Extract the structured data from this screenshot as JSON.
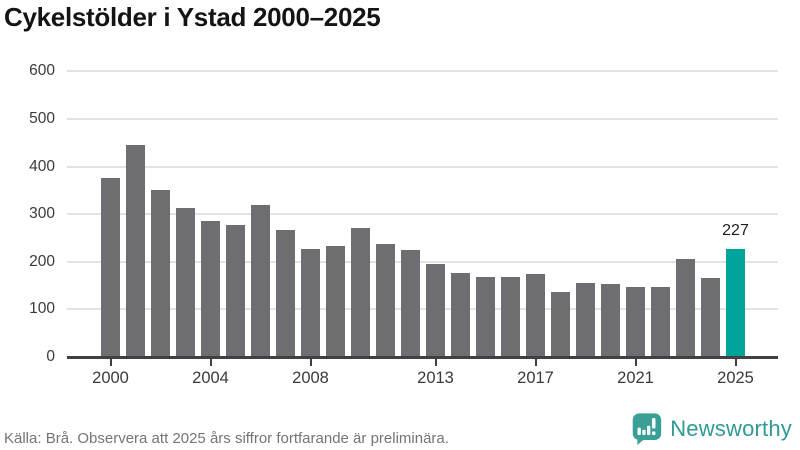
{
  "title": "Cykelstölder i Ystad 2000–2025",
  "footer": {
    "source_text": "Källa: Brå. Observera att 2025 års siffror fortfarande är preliminära.",
    "brand": "Newsworthy"
  },
  "colors": {
    "bar": "#6e6d72",
    "highlight": "#00a49b",
    "gridline": "#e3e3e3",
    "axis": "#414141",
    "title_text": "#141414",
    "tick_text": "#3a3a3a",
    "footer_text": "#747474",
    "brand_teal": "#2f9a93",
    "logo_bubble": "#3aa097",
    "value_label_text": "#1f1f1f"
  },
  "chart_data": {
    "type": "bar",
    "title": "Cykelstölder i Ystad 2000–2025",
    "xlabel": "",
    "ylabel": "",
    "x": [
      2000,
      2001,
      2002,
      2003,
      2004,
      2005,
      2006,
      2007,
      2008,
      2009,
      2010,
      2011,
      2012,
      2013,
      2014,
      2015,
      2016,
      2017,
      2018,
      2019,
      2020,
      2021,
      2022,
      2023,
      2024,
      2025
    ],
    "values": [
      376,
      446,
      350,
      313,
      285,
      277,
      319,
      266,
      227,
      233,
      270,
      238,
      224,
      196,
      177,
      169,
      169,
      175,
      137,
      156,
      153,
      147,
      147,
      206,
      166,
      227
    ],
    "ylim": [
      0,
      600
    ],
    "yticks": [
      0,
      100,
      200,
      300,
      400,
      500,
      600
    ],
    "xticks": [
      2000,
      2004,
      2008,
      2013,
      2017,
      2021,
      2025
    ],
    "grid": "horizontal",
    "legend": "none",
    "highlight_year": 2025,
    "data_label": {
      "year": 2025,
      "text": "227"
    }
  }
}
